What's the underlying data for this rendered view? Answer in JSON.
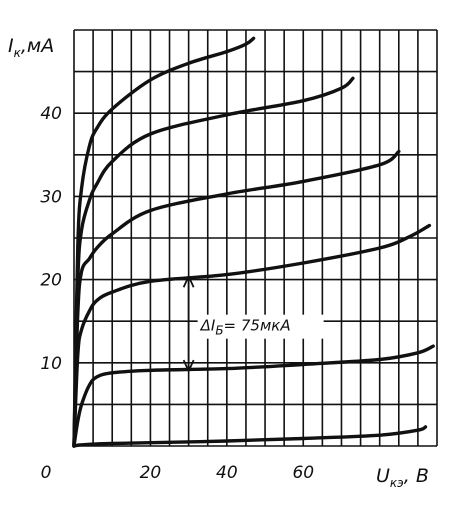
{
  "chart_data": {
    "type": "line",
    "title": "",
    "xlabel": "U",
    "xlabel_sub": "кэ",
    "xlabel_unit": ", В",
    "ylabel": "I",
    "ylabel_sub": "к",
    "ylabel_unit": ",мА",
    "xlim": [
      0,
      95
    ],
    "ylim": [
      0,
      50
    ],
    "x_ticks": [
      {
        "value": 0,
        "label": "0"
      },
      {
        "value": 20,
        "label": "20"
      },
      {
        "value": 40,
        "label": "40"
      },
      {
        "value": 60,
        "label": "60"
      }
    ],
    "y_ticks": [
      {
        "value": 10,
        "label": "10"
      },
      {
        "value": 20,
        "label": "20"
      },
      {
        "value": 30,
        "label": "30"
      },
      {
        "value": 40,
        "label": "40"
      }
    ],
    "grid": true,
    "grid_step_x": 5,
    "grid_step_y": 5,
    "series": [
      {
        "x": [
          0,
          1,
          2,
          4,
          6,
          10,
          20,
          40,
          60,
          80,
          90,
          92
        ],
        "y": [
          0,
          0.1,
          0.15,
          0.2,
          0.25,
          0.3,
          0.4,
          0.6,
          0.9,
          1.3,
          1.9,
          2.3
        ]
      },
      {
        "x": [
          0,
          1,
          2,
          4,
          6,
          10,
          20,
          40,
          60,
          80,
          90,
          94
        ],
        "y": [
          0,
          3,
          5,
          7.3,
          8.3,
          8.8,
          9.1,
          9.3,
          9.8,
          10.4,
          11.2,
          12.0
        ]
      },
      {
        "x": [
          0,
          1,
          2,
          4,
          6,
          10,
          20,
          40,
          60,
          80,
          88,
          93
        ],
        "y": [
          0,
          11,
          14,
          16.2,
          17.5,
          18.5,
          19.8,
          20.6,
          22.0,
          23.8,
          25.2,
          26.5
        ]
      },
      {
        "x": [
          0,
          1,
          2,
          4,
          6,
          10,
          20,
          40,
          60,
          80,
          85
        ],
        "y": [
          0,
          16,
          21,
          22.5,
          23.8,
          25.5,
          28.3,
          30.3,
          31.8,
          33.8,
          35.4
        ]
      },
      {
        "x": [
          0,
          1,
          2,
          4,
          6,
          10,
          20,
          40,
          60,
          70,
          73
        ],
        "y": [
          0,
          20,
          26,
          29.5,
          31.5,
          34.2,
          37.5,
          39.8,
          41.5,
          43.0,
          44.2
        ]
      },
      {
        "x": [
          0,
          1,
          2,
          4,
          6,
          10,
          20,
          30,
          40,
          45,
          47
        ],
        "y": [
          0,
          24,
          31,
          36,
          38.2,
          40.5,
          44.0,
          46.0,
          47.4,
          48.3,
          49.0
        ]
      }
    ],
    "annotation": {
      "text": "ΔI",
      "text_sub": "Б",
      "text_rest": "= 75мкА",
      "arrow_x": 30,
      "arrow_y1": 9.0,
      "arrow_y2": 20.4
    }
  }
}
